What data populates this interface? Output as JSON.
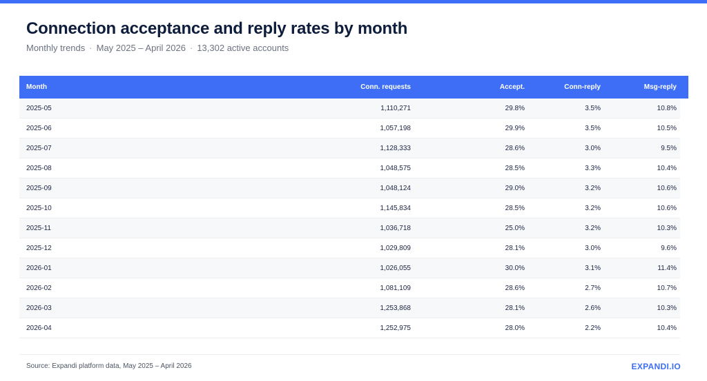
{
  "title": "Connection acceptance and reply rates by month",
  "subtitle": {
    "part1": "Monthly trends",
    "part2": "May 2025 – April 2026",
    "part3": "13,302 active accounts",
    "separator": "·"
  },
  "table": {
    "headers": [
      "Month",
      "Conn. requests",
      "Accept.",
      "Conn-reply",
      "Msg-reply"
    ],
    "rows": [
      [
        "2025-05",
        "1,110,271",
        "29.8%",
        "3.5%",
        "10.8%"
      ],
      [
        "2025-06",
        "1,057,198",
        "29.9%",
        "3.5%",
        "10.5%"
      ],
      [
        "2025-07",
        "1,128,333",
        "28.6%",
        "3.0%",
        "9.5%"
      ],
      [
        "2025-08",
        "1,048,575",
        "28.5%",
        "3.3%",
        "10.4%"
      ],
      [
        "2025-09",
        "1,048,124",
        "29.0%",
        "3.2%",
        "10.6%"
      ],
      [
        "2025-10",
        "1,145,834",
        "28.5%",
        "3.2%",
        "10.6%"
      ],
      [
        "2025-11",
        "1,036,718",
        "25.0%",
        "3.2%",
        "10.3%"
      ],
      [
        "2025-12",
        "1,029,809",
        "28.1%",
        "3.0%",
        "9.6%"
      ],
      [
        "2026-01",
        "1,026,055",
        "30.0%",
        "3.1%",
        "11.4%"
      ],
      [
        "2026-02",
        "1,081,109",
        "28.6%",
        "2.7%",
        "10.7%"
      ],
      [
        "2026-03",
        "1,253,868",
        "28.1%",
        "2.6%",
        "10.3%"
      ],
      [
        "2026-04",
        "1,252,975",
        "28.0%",
        "2.2%",
        "10.4%"
      ]
    ]
  },
  "footer": {
    "source": "Source: Expandi platform data, May 2025 – April 2026",
    "brand": "EXPANDI.IO"
  },
  "colors": {
    "accent": "#3d6ef5",
    "title": "#0f1d3d",
    "row_alt": "#f7f8fa"
  }
}
